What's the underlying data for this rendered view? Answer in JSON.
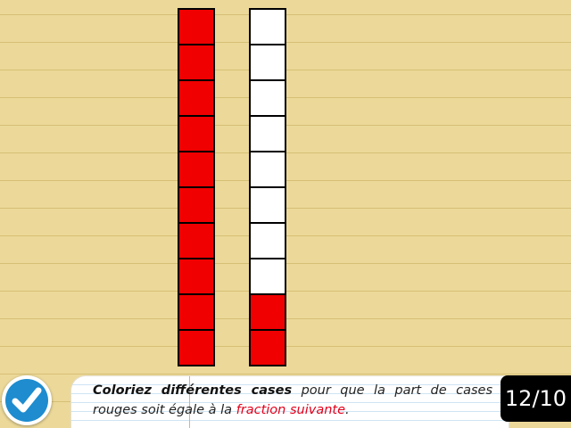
{
  "columns": [
    {
      "name": "left-column",
      "cells": 10,
      "red_cells": 10
    },
    {
      "name": "right-column",
      "cells": 10,
      "red_cells": 2
    }
  ],
  "colors": {
    "red": "#f00000",
    "white": "#ffffff",
    "paper": "#ecd999",
    "validate_blue": "#1e8ccf",
    "fraction_word": "#e3001b"
  },
  "instruction": {
    "bold_part": "Coloriez différentes cases",
    "part2": " pour que la part de cases rouges soit égale à la ",
    "highlight": "fraction suivante",
    "end": "."
  },
  "score": {
    "text": "12/10"
  },
  "validate_button": {
    "icon": "check-icon"
  }
}
